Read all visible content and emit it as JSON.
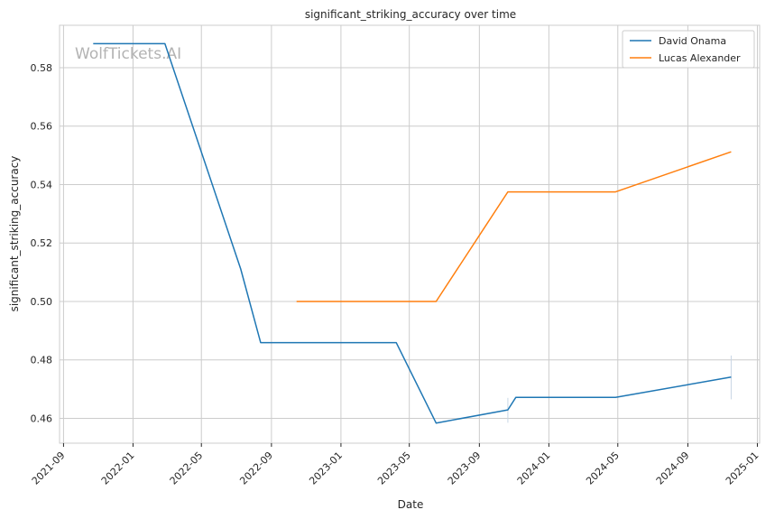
{
  "chart_data": {
    "type": "line",
    "title": "significant_striking_accuracy over time",
    "xlabel": "Date",
    "ylabel": "significant_striking_accuracy",
    "watermark": "WolfTickets.AI",
    "legend_position": "top-right",
    "grid": true,
    "xlim": [
      "2021-08-25",
      "2025-01-05"
    ],
    "ylim": [
      0.4515,
      0.5945
    ],
    "x_ticks": [
      "2021-09",
      "2022-01",
      "2022-05",
      "2022-09",
      "2023-01",
      "2023-05",
      "2023-09",
      "2024-01",
      "2024-05",
      "2024-09",
      "2025-01"
    ],
    "y_ticks": [
      0.46,
      0.48,
      0.5,
      0.52,
      0.54,
      0.56,
      0.58
    ],
    "series": [
      {
        "name": "David Onama",
        "color": "#1f77b4",
        "x": [
          "2021-10-23",
          "2022-02-26",
          "2022-07-09",
          "2022-08-13",
          "2023-04-08",
          "2023-06-17",
          "2023-10-21",
          "2023-11-04",
          "2024-04-27",
          "2024-11-16"
        ],
        "y": [
          0.5882,
          0.5882,
          0.5111,
          0.4859,
          0.4859,
          0.4584,
          0.4629,
          0.4672,
          0.4672,
          0.4741
        ]
      },
      {
        "name": "Lucas Alexander",
        "color": "#ff7f0e",
        "x": [
          "2022-10-15",
          "2023-06-17",
          "2023-10-21",
          "2024-04-27",
          "2024-11-16"
        ],
        "y": [
          0.5,
          0.5,
          0.5375,
          0.5375,
          0.5512
        ]
      }
    ]
  }
}
